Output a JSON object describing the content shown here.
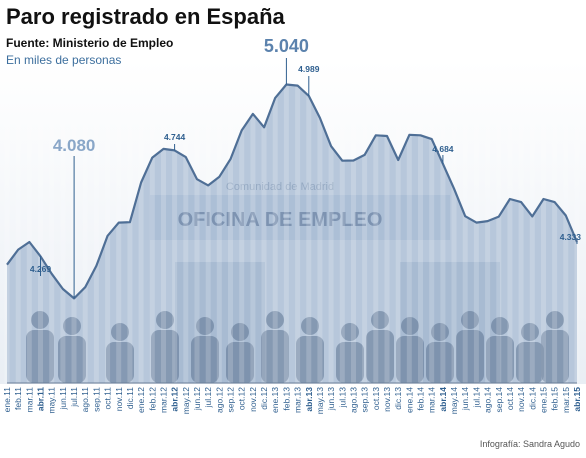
{
  "title": "Paro registrado en España",
  "source": "Fuente: Ministerio de Empleo",
  "unit_note": "En miles de personas",
  "credit": "Infografía: Sandra Agudo",
  "background_photo_text": {
    "sign": "OFICINA DE EMPLEO",
    "small": "Comunidad de Madrid"
  },
  "colors": {
    "line": "#4f6f96",
    "area": "#b7c7db",
    "peak_label": "#5b82ad",
    "annotation": "#2f5f8f"
  },
  "chart_data": {
    "type": "area",
    "title": "Paro registrado en España",
    "ylabel": "En miles de personas",
    "ylim": [
      3700,
      5150
    ],
    "x": [
      "ene.11",
      "feb.11",
      "mar.11",
      "abr.11",
      "may.11",
      "jun.11",
      "jul.11",
      "ago.11",
      "sep.11",
      "oct.11",
      "nov.11",
      "dic.11",
      "ene.12",
      "feb.12",
      "mar.12",
      "abr.12",
      "may.12",
      "jun.12",
      "jul.12",
      "ago.12",
      "sep.12",
      "oct.12",
      "nov.12",
      "dic.12",
      "ene.13",
      "feb.13",
      "mar.13",
      "abr.13",
      "may.13",
      "jun.13",
      "jul.13",
      "ago.13",
      "sep.13",
      "oct.13",
      "nov.13",
      "dic.13",
      "ene.14",
      "feb.14",
      "mar.14",
      "abr.14",
      "may.14",
      "jun.14",
      "jul.14",
      "ago.14",
      "sep.14",
      "oct.14",
      "nov.14",
      "dic.14",
      "ene.15",
      "feb.15",
      "mar.15",
      "abr.15"
    ],
    "bold_x": [
      "abr.11",
      "abr.12",
      "abr.13",
      "abr.14",
      "abr.15"
    ],
    "values": [
      4231,
      4299,
      4333,
      4269,
      4190,
      4122,
      4080,
      4130,
      4226,
      4361,
      4420,
      4422,
      4600,
      4712,
      4751,
      4744,
      4714,
      4615,
      4587,
      4626,
      4705,
      4834,
      4908,
      4848,
      4980,
      5040,
      5035,
      4989,
      4890,
      4763,
      4698,
      4699,
      4724,
      4812,
      4809,
      4701,
      4814,
      4812,
      4795,
      4684,
      4572,
      4449,
      4420,
      4427,
      4447,
      4526,
      4512,
      4448,
      4526,
      4512,
      4452,
      4333
    ],
    "annotations": [
      {
        "x": "abr.11",
        "label": "4.269",
        "style": "small"
      },
      {
        "x": "jul.11",
        "label": "4.080",
        "style": "big-light"
      },
      {
        "x": "abr.12",
        "label": "4.744",
        "style": "small"
      },
      {
        "x": "feb.13",
        "label": "5.040",
        "style": "big"
      },
      {
        "x": "abr.13",
        "label": "4.989",
        "style": "small"
      },
      {
        "x": "abr.14",
        "label": "4.684",
        "style": "small"
      },
      {
        "x": "abr.15",
        "label": "4.333",
        "style": "small"
      }
    ]
  }
}
